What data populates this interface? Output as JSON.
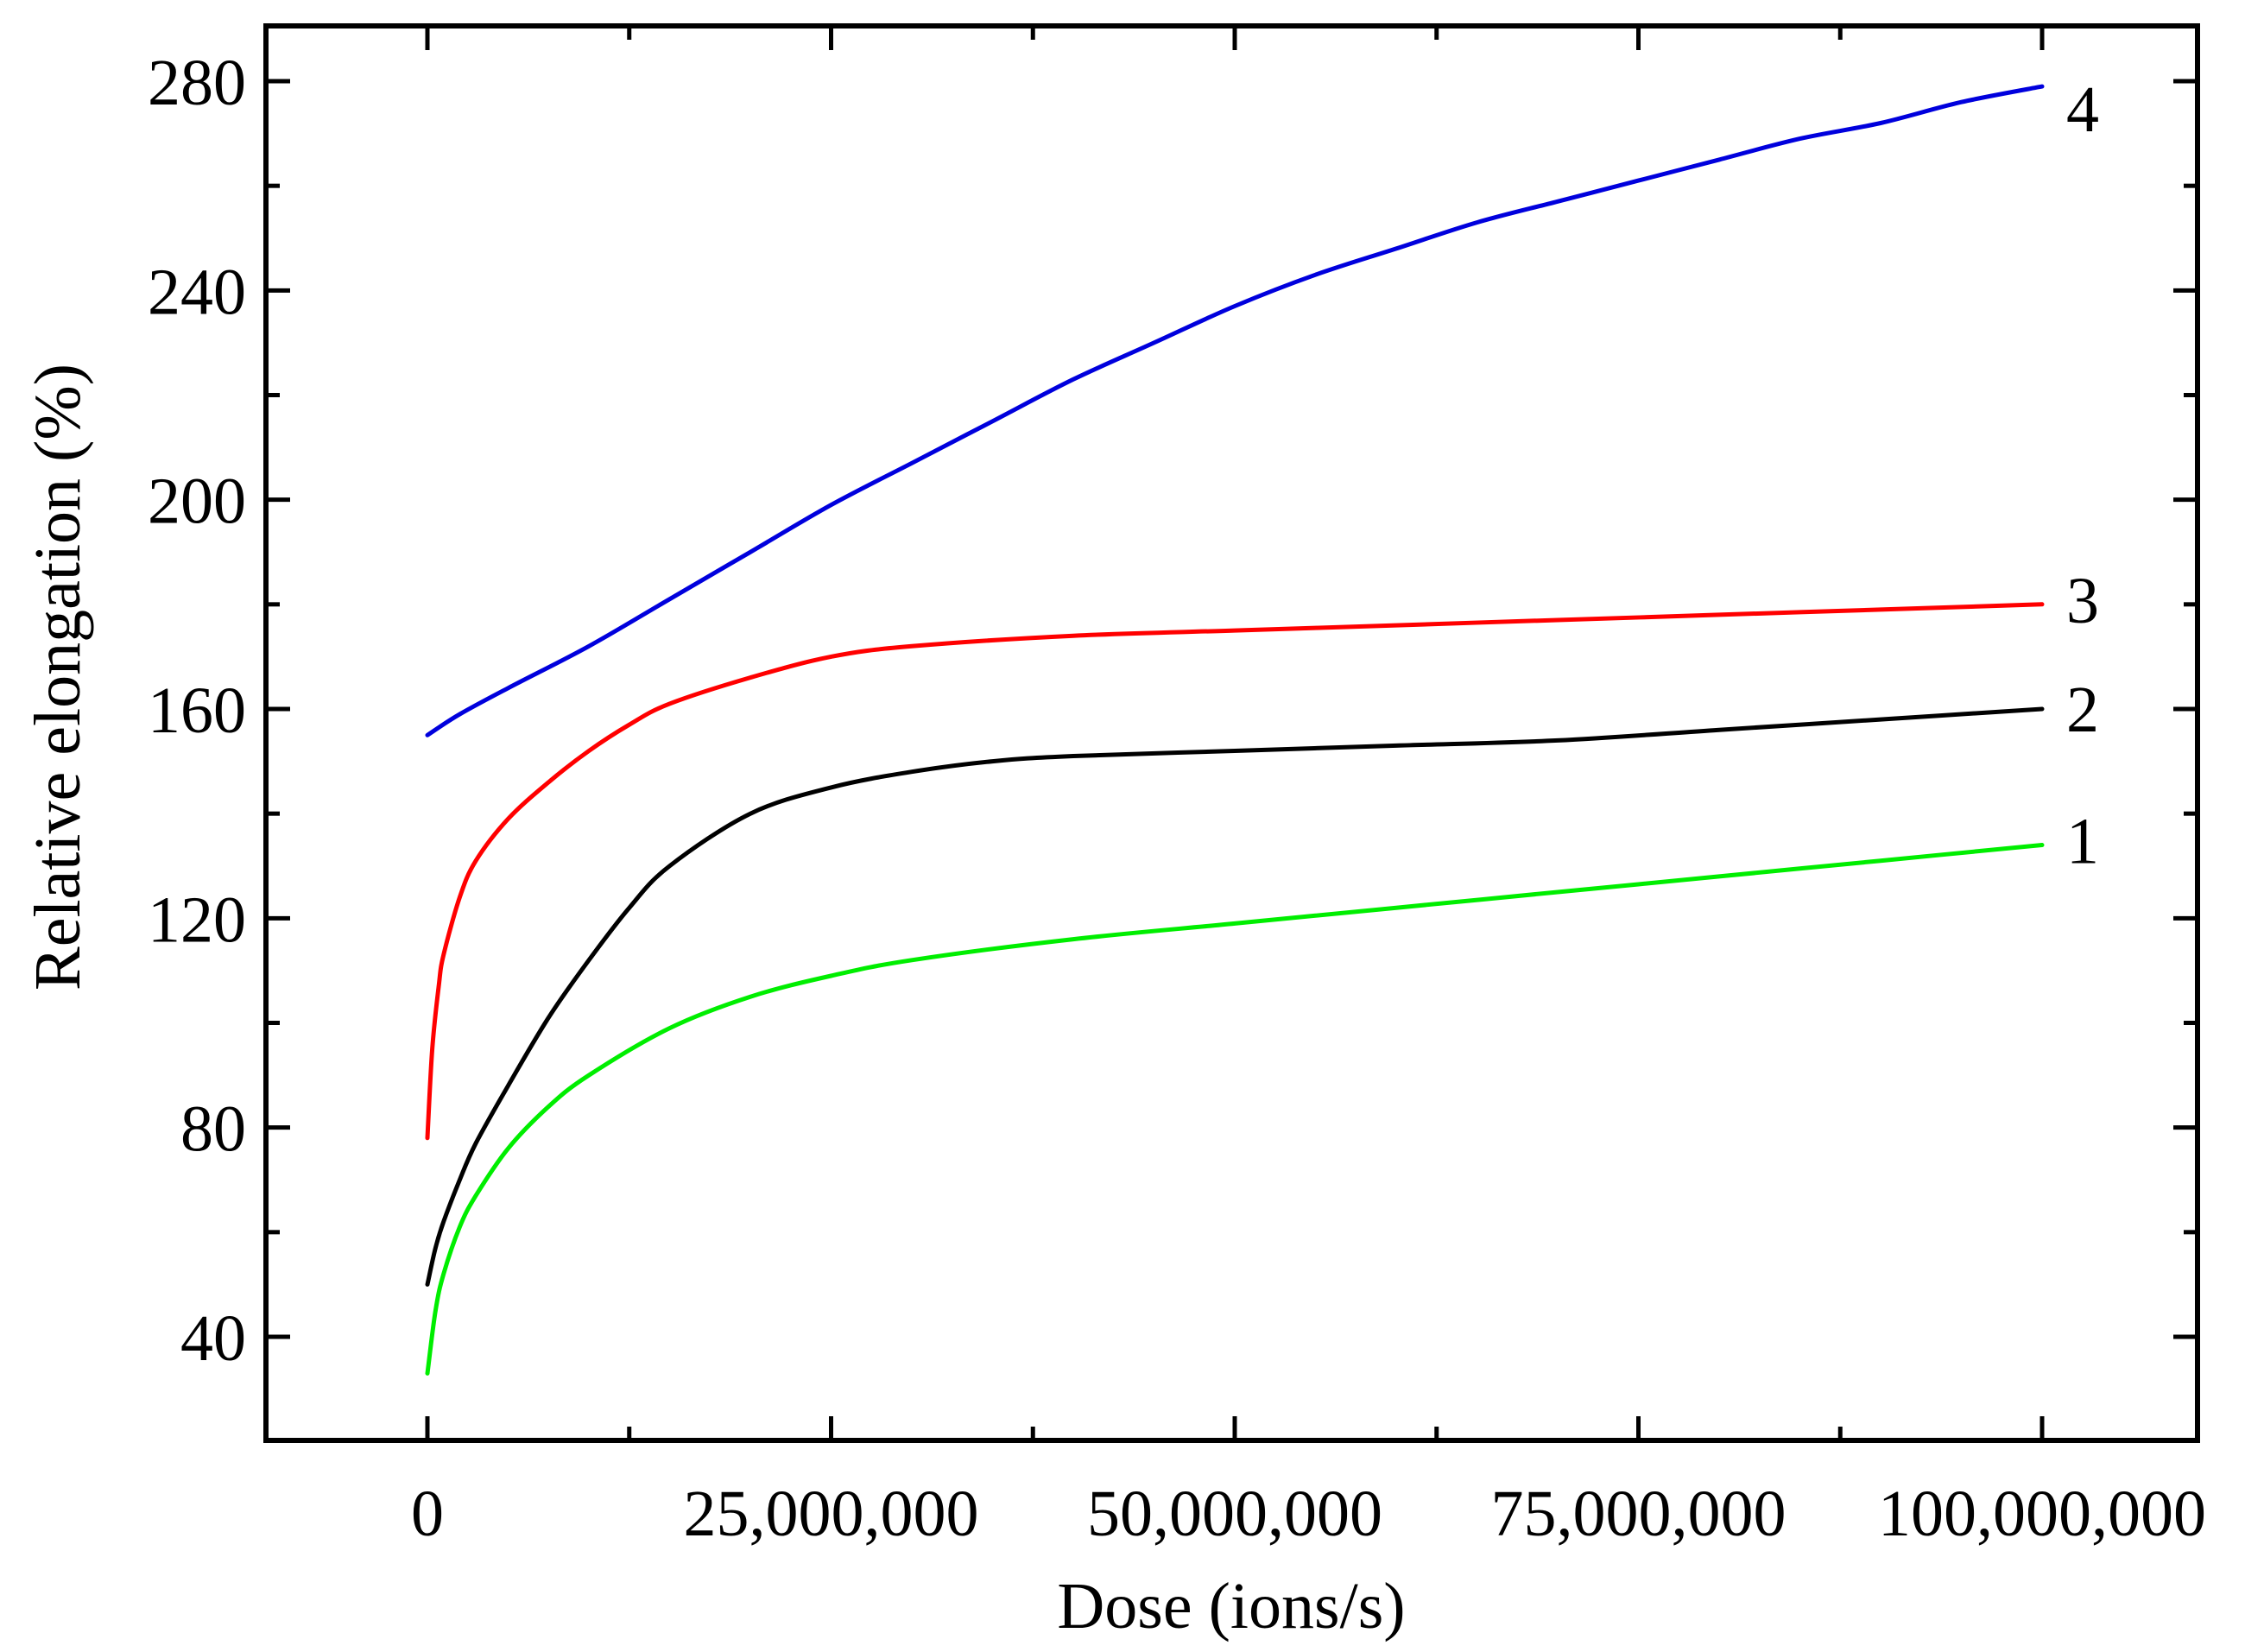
{
  "chart_data": {
    "type": "line",
    "title": "",
    "xlabel": "Dose (ions/s)",
    "ylabel": "Relative elongation (%)",
    "xlim": [
      -20000000,
      120000000
    ],
    "ylim": [
      20,
      290
    ],
    "x_ticks": [
      0,
      25000000,
      50000000,
      75000000,
      100000000
    ],
    "x_tick_labels": [
      "0",
      "25,000,000",
      "50,000,000",
      "75,000,000",
      "100,000,000"
    ],
    "y_ticks": [
      40,
      80,
      120,
      160,
      200,
      240,
      280
    ],
    "y_tick_labels": [
      "40",
      "80",
      "120",
      "160",
      "200",
      "240",
      "280"
    ],
    "grid": false,
    "legend": "none",
    "series": [
      {
        "label": "1",
        "color": "#00ee00",
        "x": [
          0,
          500000,
          1000000,
          2000000,
          3000000,
          5000000,
          7500000,
          10000000,
          15000000,
          20000000,
          25000000,
          30000000,
          40000000,
          50000000,
          60000000,
          70000000,
          80000000,
          90000000,
          100000000
        ],
        "y": [
          33,
          45,
          52,
          61,
          67,
          76,
          84,
          90,
          99,
          105,
          109,
          112,
          116,
          119,
          122,
          125,
          128,
          131,
          134
        ]
      },
      {
        "label": "2",
        "color": "#000000",
        "x": [
          0,
          500000,
          1000000,
          2000000,
          3000000,
          5000000,
          7500000,
          10000000,
          12500000,
          15000000,
          20000000,
          25000000,
          30000000,
          35000000,
          40000000,
          50000000,
          60000000,
          70000000,
          80000000,
          90000000,
          100000000
        ],
        "y": [
          50,
          57,
          62,
          70,
          77,
          88,
          101,
          112,
          122,
          130,
          140,
          145,
          148,
          150,
          151,
          152,
          153,
          154,
          156,
          158,
          160
        ]
      },
      {
        "label": "3",
        "color": "#ff0000",
        "x": [
          0,
          300000,
          700000,
          1000000,
          2000000,
          3000000,
          5000000,
          7500000,
          10000000,
          12500000,
          15000000,
          20000000,
          25000000,
          30000000,
          40000000,
          50000000,
          60000000,
          70000000,
          80000000,
          90000000,
          100000000
        ],
        "y": [
          78,
          95,
          107,
          113,
          124,
          131,
          139,
          146,
          152,
          157,
          161,
          166,
          170,
          172,
          174,
          175,
          176,
          177,
          178,
          179,
          180
        ]
      },
      {
        "label": "4",
        "color": "#0000dd",
        "x": [
          0,
          2000000,
          5000000,
          10000000,
          15000000,
          20000000,
          25000000,
          30000000,
          35000000,
          40000000,
          45000000,
          50000000,
          55000000,
          60000000,
          65000000,
          70000000,
          75000000,
          80000000,
          85000000,
          90000000,
          95000000,
          100000000
        ],
        "y": [
          155,
          159,
          164,
          172,
          181,
          190,
          199,
          207,
          215,
          223,
          230,
          237,
          243,
          248,
          253,
          257,
          261,
          265,
          269,
          272,
          276,
          279
        ]
      }
    ]
  }
}
